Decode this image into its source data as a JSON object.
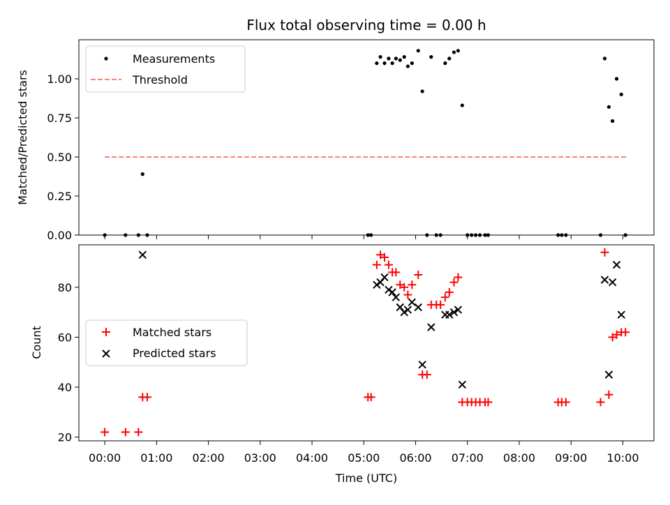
{
  "chart_data": {
    "type": "scatter",
    "title": "Flux total observing time = 0.00 h",
    "xlabel": "Time (UTC)",
    "x_unit": "hours UTC",
    "xlim": [
      -0.5,
      10.6
    ],
    "x_ticks": [
      {
        "value": 0,
        "label": "00:00"
      },
      {
        "value": 1,
        "label": "01:00"
      },
      {
        "value": 2,
        "label": "02:00"
      },
      {
        "value": 3,
        "label": "03:00"
      },
      {
        "value": 4,
        "label": "04:00"
      },
      {
        "value": 5,
        "label": "05:00"
      },
      {
        "value": 6,
        "label": "06:00"
      },
      {
        "value": 7,
        "label": "07:00"
      },
      {
        "value": 8,
        "label": "08:00"
      },
      {
        "value": 9,
        "label": "09:00"
      },
      {
        "value": 10,
        "label": "10:00"
      }
    ],
    "panels": [
      {
        "name": "ratio",
        "ylabel": "Matched/Predicted stars",
        "ylim": [
          0,
          1.25
        ],
        "y_ticks": [
          {
            "value": 0,
            "label": "0.00"
          },
          {
            "value": 0.25,
            "label": "0.25"
          },
          {
            "value": 0.5,
            "label": "0.50"
          },
          {
            "value": 0.75,
            "label": "0.75"
          },
          {
            "value": 1.0,
            "label": "1.00"
          }
        ],
        "legend": {
          "placement": "top-left",
          "entries": [
            {
              "label": "Measurements",
              "marker": "dot",
              "color": "#000000"
            },
            {
              "label": "Threshold",
              "marker": "dashed-line",
              "color": "#ff7f7f"
            }
          ]
        },
        "threshold": {
          "value": 0.5,
          "x_start": 0,
          "x_end": 10.1,
          "color": "#ff7f7f"
        },
        "series": [
          {
            "name": "Measurements",
            "color": "#000000",
            "points": [
              [
                0.0,
                0.0
              ],
              [
                0.4,
                0.0
              ],
              [
                0.65,
                0.0
              ],
              [
                0.73,
                0.39
              ],
              [
                0.82,
                0.0
              ],
              [
                5.08,
                0.0
              ],
              [
                5.14,
                0.0
              ],
              [
                5.25,
                1.1
              ],
              [
                5.32,
                1.14
              ],
              [
                5.4,
                1.1
              ],
              [
                5.48,
                1.13
              ],
              [
                5.55,
                1.1
              ],
              [
                5.62,
                1.13
              ],
              [
                5.7,
                1.12
              ],
              [
                5.78,
                1.14
              ],
              [
                5.85,
                1.08
              ],
              [
                5.93,
                1.1
              ],
              [
                6.05,
                1.18
              ],
              [
                6.13,
                0.92
              ],
              [
                6.22,
                0.0
              ],
              [
                6.3,
                1.14
              ],
              [
                6.4,
                0.0
              ],
              [
                6.48,
                0.0
              ],
              [
                6.57,
                1.1
              ],
              [
                6.65,
                1.13
              ],
              [
                6.74,
                1.17
              ],
              [
                6.82,
                1.18
              ],
              [
                6.9,
                0.83
              ],
              [
                7.0,
                0.0
              ],
              [
                7.08,
                0.0
              ],
              [
                7.16,
                0.0
              ],
              [
                7.24,
                0.0
              ],
              [
                7.34,
                0.0
              ],
              [
                7.4,
                0.0
              ],
              [
                8.75,
                0.0
              ],
              [
                8.82,
                0.0
              ],
              [
                8.9,
                0.0
              ],
              [
                9.57,
                0.0
              ],
              [
                9.65,
                1.13
              ],
              [
                9.73,
                0.82
              ],
              [
                9.8,
                0.73
              ],
              [
                9.88,
                1.0
              ],
              [
                9.97,
                0.9
              ],
              [
                10.05,
                0.0
              ]
            ]
          }
        ]
      },
      {
        "name": "counts",
        "ylabel": "Count",
        "ylim": [
          18.5,
          97
        ],
        "y_ticks": [
          {
            "value": 20,
            "label": "20"
          },
          {
            "value": 40,
            "label": "40"
          },
          {
            "value": 60,
            "label": "60"
          },
          {
            "value": 80,
            "label": "80"
          }
        ],
        "legend": {
          "placement": "center-left",
          "entries": [
            {
              "label": "Matched stars",
              "marker": "plus",
              "color": "#ff0000"
            },
            {
              "label": "Predicted stars",
              "marker": "x",
              "color": "#000000"
            }
          ]
        },
        "series": [
          {
            "name": "Matched stars",
            "marker": "plus",
            "color": "#ff0000",
            "points": [
              [
                0.0,
                22
              ],
              [
                0.4,
                22
              ],
              [
                0.65,
                22
              ],
              [
                0.73,
                36
              ],
              [
                0.82,
                36
              ],
              [
                5.08,
                36
              ],
              [
                5.14,
                36
              ],
              [
                5.25,
                89
              ],
              [
                5.32,
                93
              ],
              [
                5.4,
                92
              ],
              [
                5.48,
                89
              ],
              [
                5.55,
                86
              ],
              [
                5.62,
                86
              ],
              [
                5.7,
                81
              ],
              [
                5.78,
                80
              ],
              [
                5.85,
                77
              ],
              [
                5.93,
                81
              ],
              [
                6.05,
                85
              ],
              [
                6.13,
                45
              ],
              [
                6.22,
                45
              ],
              [
                6.3,
                73
              ],
              [
                6.4,
                73
              ],
              [
                6.48,
                73
              ],
              [
                6.57,
                76
              ],
              [
                6.65,
                78
              ],
              [
                6.74,
                82
              ],
              [
                6.82,
                84
              ],
              [
                6.9,
                34
              ],
              [
                7.0,
                34
              ],
              [
                7.08,
                34
              ],
              [
                7.16,
                34
              ],
              [
                7.24,
                34
              ],
              [
                7.34,
                34
              ],
              [
                7.4,
                34
              ],
              [
                8.75,
                34
              ],
              [
                8.82,
                34
              ],
              [
                8.9,
                34
              ],
              [
                9.57,
                34
              ],
              [
                9.65,
                94
              ],
              [
                9.73,
                37
              ],
              [
                9.8,
                60
              ],
              [
                9.88,
                61
              ],
              [
                9.97,
                62
              ],
              [
                10.05,
                62
              ]
            ]
          },
          {
            "name": "Predicted stars",
            "marker": "x",
            "color": "#000000",
            "points": [
              [
                0.73,
                93
              ],
              [
                5.25,
                81
              ],
              [
                5.32,
                82
              ],
              [
                5.4,
                84
              ],
              [
                5.48,
                79
              ],
              [
                5.55,
                78
              ],
              [
                5.62,
                76
              ],
              [
                5.7,
                72
              ],
              [
                5.78,
                70
              ],
              [
                5.85,
                71
              ],
              [
                5.93,
                74
              ],
              [
                6.05,
                72
              ],
              [
                6.13,
                49
              ],
              [
                6.3,
                64
              ],
              [
                6.57,
                69
              ],
              [
                6.65,
                69
              ],
              [
                6.74,
                70
              ],
              [
                6.82,
                71
              ],
              [
                6.9,
                41
              ],
              [
                9.65,
                83
              ],
              [
                9.73,
                45
              ],
              [
                9.8,
                82
              ],
              [
                9.88,
                89
              ],
              [
                9.97,
                69
              ]
            ]
          }
        ]
      }
    ]
  }
}
